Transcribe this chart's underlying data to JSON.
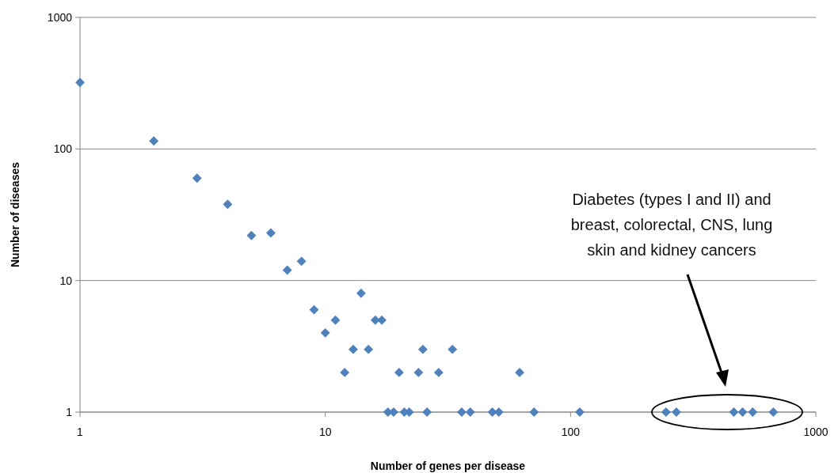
{
  "chart_data": {
    "type": "scatter",
    "xlabel": "Number of genes per disease",
    "ylabel": "Number of diseases",
    "log": "xy",
    "grid": "y",
    "marker": "diamond",
    "xlim": [
      1,
      1000
    ],
    "xticks": [
      1,
      10,
      100,
      1000
    ],
    "ylim": [
      1,
      1000
    ],
    "yticks": [
      1,
      10,
      100,
      1000
    ],
    "annotations": [
      "Diabetes (types I and II) and breast, colorectal, CNS, lung skin and kidney cancers"
    ],
    "series": [
      {
        "color": "#4f81bd",
        "x": [
          1,
          2,
          3,
          4,
          5,
          6,
          7,
          8,
          9,
          10,
          11,
          12,
          13,
          14,
          15,
          16,
          17,
          18,
          19,
          20,
          21,
          22,
          24,
          25,
          26,
          29,
          33,
          36,
          39,
          48,
          51,
          62,
          71,
          109,
          245,
          270,
          463,
          503,
          553,
          671
        ],
        "values": [
          320,
          115,
          60,
          38,
          22,
          23,
          12,
          14,
          6,
          4,
          5,
          2,
          3,
          8,
          3,
          5,
          5,
          1,
          1,
          2,
          1,
          1,
          2,
          3,
          1,
          2,
          3,
          1,
          1,
          1,
          1,
          2,
          1,
          1,
          1,
          1,
          1,
          1,
          1,
          1
        ]
      }
    ]
  }
}
